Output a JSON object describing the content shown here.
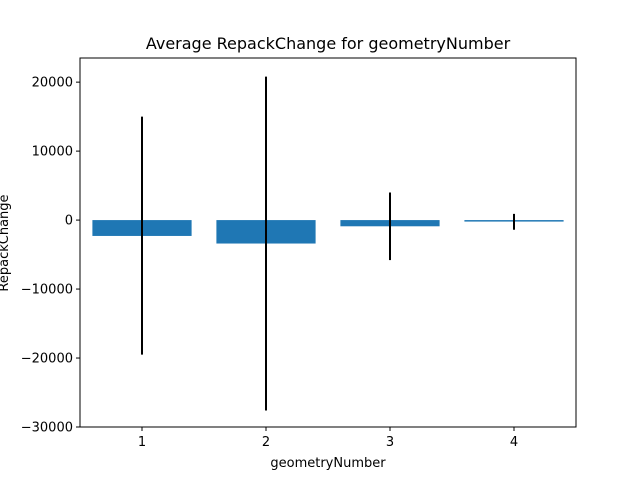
{
  "chart_data": {
    "type": "bar",
    "title": "Average RepackChange for geometryNumber",
    "xlabel": "geometryNumber",
    "ylabel": "RepackChange",
    "categories": [
      "1",
      "2",
      "3",
      "4"
    ],
    "values": [
      -2300,
      -3400,
      -900,
      -200
    ],
    "error_low": [
      -19500,
      -27600,
      -5800,
      -1400
    ],
    "error_high": [
      15000,
      20800,
      4000,
      900
    ],
    "ylim": [
      -30000,
      23500
    ],
    "yticks": [
      -30000,
      -20000,
      -10000,
      0,
      10000,
      20000
    ],
    "ytick_labels": [
      "−30000",
      "−20000",
      "−10000",
      "0",
      "10000",
      "20000"
    ],
    "grid": false,
    "bar_color": "#1f77b4",
    "error_color": "#000000"
  }
}
